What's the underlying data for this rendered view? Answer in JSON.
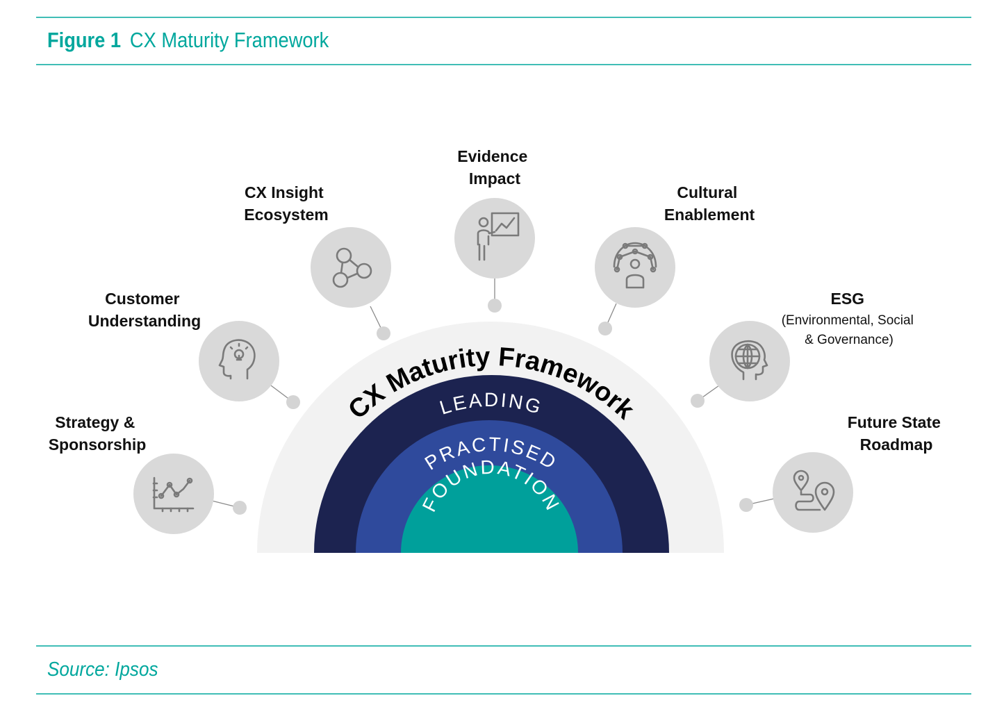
{
  "figure": {
    "label": "Figure 1",
    "title": "CX Maturity Framework",
    "source": "Source: Ipsos",
    "accent_color": "#00a79d"
  },
  "framework": {
    "title": "CX Maturity Framework",
    "levels": [
      {
        "label": "LEADING",
        "color": "#1c2350"
      },
      {
        "label": "PRACTISED",
        "color": "#2f4a9c"
      },
      {
        "label": "FOUNDATION",
        "color": "#00a09b"
      }
    ],
    "outer_color": "#f2f2f2"
  },
  "pillars": [
    {
      "line1": "Strategy &",
      "line2": "Sponsorship",
      "icon": "line-chart-icon"
    },
    {
      "line1": "Customer",
      "line2": "Understanding",
      "icon": "head-lightbulb-icon"
    },
    {
      "line1": "CX Insight",
      "line2": "Ecosystem",
      "icon": "network-nodes-icon"
    },
    {
      "line1": "Evidence",
      "line2": "Impact",
      "icon": "presenter-chart-icon"
    },
    {
      "line1": "Cultural",
      "line2": "Enablement",
      "icon": "people-network-icon"
    },
    {
      "line1": "ESG",
      "line2": "(Environmental, Social",
      "line3": "& Governance)",
      "icon": "head-globe-icon"
    },
    {
      "line1": "Future State",
      "line2": "Roadmap",
      "icon": "route-map-icon"
    }
  ]
}
